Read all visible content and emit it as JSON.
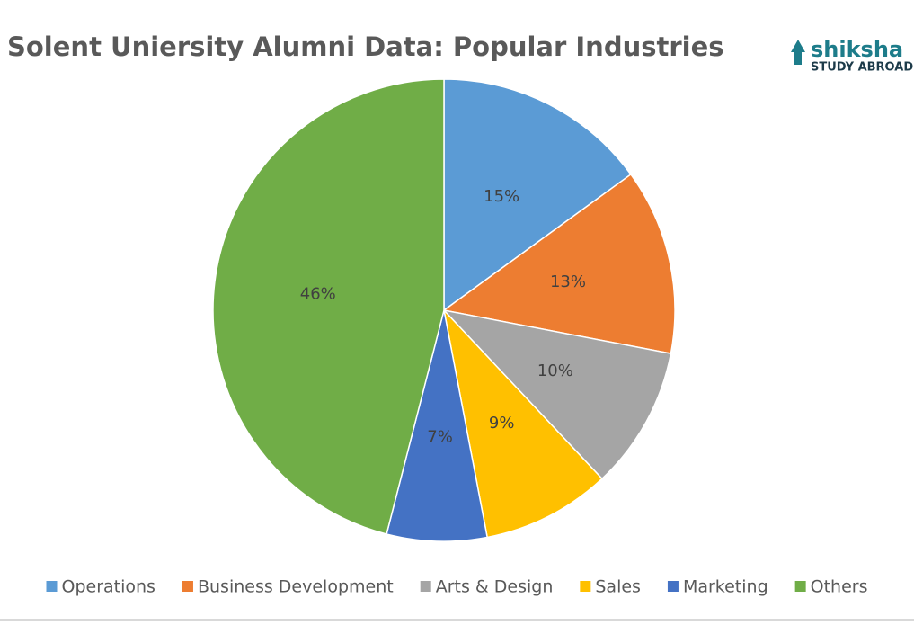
{
  "chart_data": {
    "type": "pie",
    "title": "Solent Uniersity Alumni Data: Popular Industries",
    "logo": {
      "name": "shiksha",
      "tagline": "STUDY ABROAD"
    },
    "categories": [
      "Operations",
      "Business Development",
      "Arts & Design",
      "Sales",
      "Marketing",
      "Others"
    ],
    "values": [
      15,
      13,
      10,
      9,
      7,
      46
    ],
    "value_labels": [
      "15%",
      "13%",
      "10%",
      "9%",
      "7%",
      "46%"
    ],
    "colors": [
      "#5b9bd5",
      "#ed7d31",
      "#a5a5a5",
      "#ffc000",
      "#4472c4",
      "#70ad47"
    ],
    "legend": "bottom"
  }
}
